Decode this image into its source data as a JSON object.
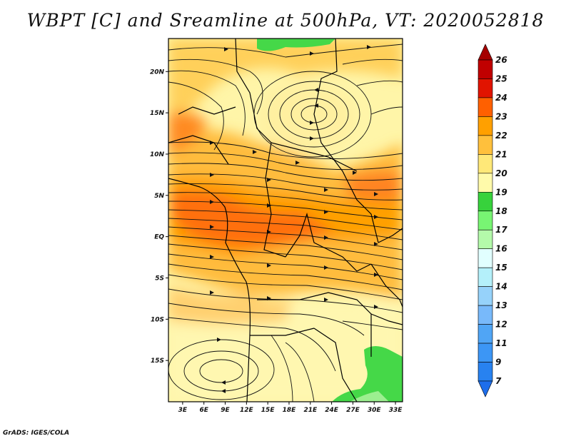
{
  "title": "WBPT [C] and Sreamline at 500hPa, VT: 2020052818",
  "footer": "GrADS: IGES/COLA",
  "map": {
    "lat_range": [
      -20,
      24
    ],
    "lon_range": [
      1,
      34
    ],
    "lat_ticks": [
      {
        "lat": 20,
        "label": "20N"
      },
      {
        "lat": 15,
        "label": "15N"
      },
      {
        "lat": 10,
        "label": "10N"
      },
      {
        "lat": 5,
        "label": "5N"
      },
      {
        "lat": 0,
        "label": "EQ"
      },
      {
        "lat": -5,
        "label": "5S"
      },
      {
        "lat": -10,
        "label": "10S"
      },
      {
        "lat": -15,
        "label": "15S"
      }
    ],
    "lon_ticks": [
      {
        "lon": 3,
        "label": "3E"
      },
      {
        "lon": 6,
        "label": "6E"
      },
      {
        "lon": 9,
        "label": "9E"
      },
      {
        "lon": 12,
        "label": "12E"
      },
      {
        "lon": 15,
        "label": "15E"
      },
      {
        "lon": 18,
        "label": "18E"
      },
      {
        "lon": 21,
        "label": "21E"
      },
      {
        "lon": 24,
        "label": "24E"
      },
      {
        "lon": 27,
        "label": "27E"
      },
      {
        "lon": 30,
        "label": "30E"
      },
      {
        "lon": 33,
        "label": "33E"
      }
    ]
  },
  "colorbar": {
    "levels": [
      "7",
      "9",
      "11",
      "12",
      "13",
      "14",
      "15",
      "16",
      "17",
      "18",
      "19",
      "20",
      "21",
      "22",
      "23",
      "24",
      "25",
      "26"
    ],
    "colors": [
      "#1e6eeb",
      "#2882f0",
      "#3c96f5",
      "#50a5f5",
      "#78b9fa",
      "#96d2fa",
      "#b4f0fa",
      "#e1ffff",
      "#b4faaa",
      "#78f573",
      "#37d23c",
      "#fffaaa",
      "#ffe878",
      "#ffc03c",
      "#ffa000",
      "#ff6000",
      "#e11400",
      "#c00000",
      "#a50000"
    ]
  },
  "fields": {
    "wbpt_color_scale": {
      "18": "#fffaaa",
      "19": "#ffe878",
      "20": "#ffc03c",
      "21": "#ffa000",
      "22": "#ff6000",
      "17": "#37d23c"
    }
  }
}
